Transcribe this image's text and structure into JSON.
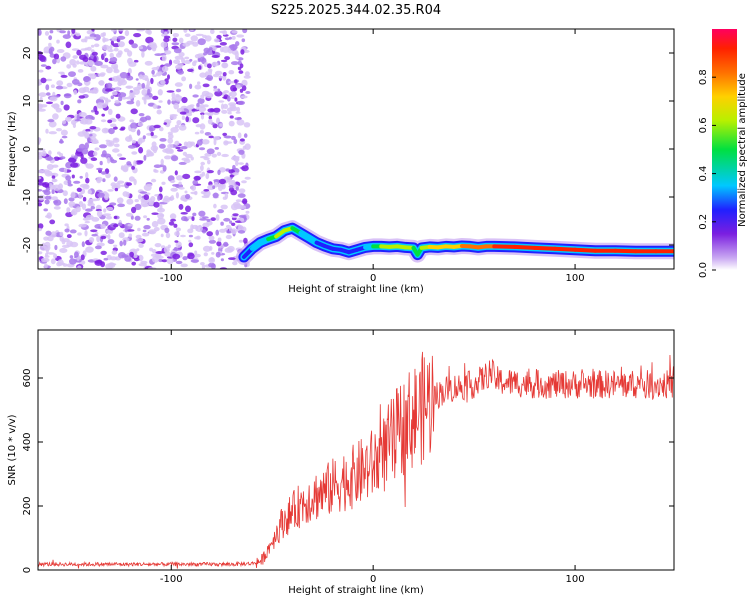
{
  "title": "S225.2025.344.02.35.R04",
  "chart_data": [
    {
      "type": "heatmap",
      "xlabel": "Height of straight line (km)",
      "ylabel": "Frequency (Hz)",
      "xlim": [
        -166,
        149
      ],
      "ylim": [
        -25,
        25
      ],
      "xticks": [
        -100,
        0,
        100
      ],
      "yticks": [
        -20,
        -10,
        0,
        10,
        20
      ],
      "colorbar": {
        "label": "Normalized spectral amplitude",
        "range": [
          0,
          1
        ],
        "ticks": [
          0.0,
          0.2,
          0.4,
          0.6,
          0.8
        ],
        "colors": [
          "#ffffff",
          "#c9a8f2",
          "#7b1fe0",
          "#2020ff",
          "#00c8ff",
          "#00e040",
          "#b8f000",
          "#ffd000",
          "#ff7000",
          "#ff2000",
          "#ff0060"
        ]
      },
      "noise_region_x": [
        -166,
        -62
      ],
      "signal_ridge": {
        "x": [
          -64,
          -60,
          -56,
          -52,
          -48,
          -44,
          -40,
          -36,
          -32,
          -28,
          -24,
          -20,
          -16,
          -12,
          -8,
          -4,
          0,
          4,
          8,
          12,
          16,
          20,
          22,
          24,
          28,
          32,
          36,
          40,
          44,
          48,
          52,
          56,
          60,
          70,
          80,
          90,
          100,
          110,
          120,
          130,
          140,
          149
        ],
        "frequency": [
          -22.5,
          -20.8,
          -19.5,
          -18.8,
          -18.2,
          -17.0,
          -16.5,
          -17.5,
          -18.5,
          -19.5,
          -20.2,
          -20.8,
          -21.0,
          -21.5,
          -21.0,
          -20.5,
          -20.3,
          -20.3,
          -20.4,
          -20.3,
          -20.5,
          -20.6,
          -22.0,
          -20.6,
          -20.4,
          -20.5,
          -20.3,
          -20.4,
          -20.2,
          -20.3,
          -20.5,
          -20.3,
          -20.3,
          -20.4,
          -20.6,
          -20.8,
          -21.0,
          -21.2,
          -21.2,
          -21.3,
          -21.3,
          -21.3
        ],
        "amplitude": [
          0.3,
          0.35,
          0.4,
          0.45,
          0.55,
          0.6,
          0.55,
          0.45,
          0.4,
          0.35,
          0.3,
          0.3,
          0.35,
          0.3,
          0.3,
          0.35,
          0.5,
          0.55,
          0.6,
          0.6,
          0.65,
          0.6,
          0.4,
          0.6,
          0.65,
          0.7,
          0.7,
          0.7,
          0.75,
          0.75,
          0.8,
          0.8,
          0.85,
          0.85,
          0.85,
          0.85,
          0.85,
          0.85,
          0.85,
          0.85,
          0.85,
          0.85
        ]
      }
    },
    {
      "type": "line",
      "xlabel": "Height of straight line (km)",
      "ylabel": "SNR (10 * v/v)",
      "xlim": [
        -166,
        149
      ],
      "ylim": [
        0,
        750
      ],
      "xticks": [
        -100,
        0,
        100
      ],
      "yticks": [
        0,
        200,
        400,
        600
      ],
      "color": "#e53935",
      "series": [
        {
          "x": [
            -166,
            -140,
            -120,
            -100,
            -80,
            -70,
            -60,
            -55,
            -50,
            -45,
            -40,
            -35,
            -30,
            -25,
            -20,
            -15,
            -10,
            -5,
            0,
            5,
            10,
            15,
            20,
            25,
            30,
            35,
            40,
            50,
            55,
            58,
            62,
            70,
            80,
            90,
            100,
            110,
            120,
            130,
            140,
            149
          ],
          "values": [
            18,
            18,
            18,
            18,
            18,
            18,
            20,
            30,
            90,
            150,
            180,
            210,
            230,
            240,
            260,
            280,
            290,
            310,
            330,
            360,
            410,
            450,
            480,
            510,
            540,
            560,
            570,
            580,
            600,
            620,
            590,
            585,
            580,
            580,
            580,
            580,
            580,
            580,
            580,
            580
          ]
        }
      ]
    }
  ]
}
